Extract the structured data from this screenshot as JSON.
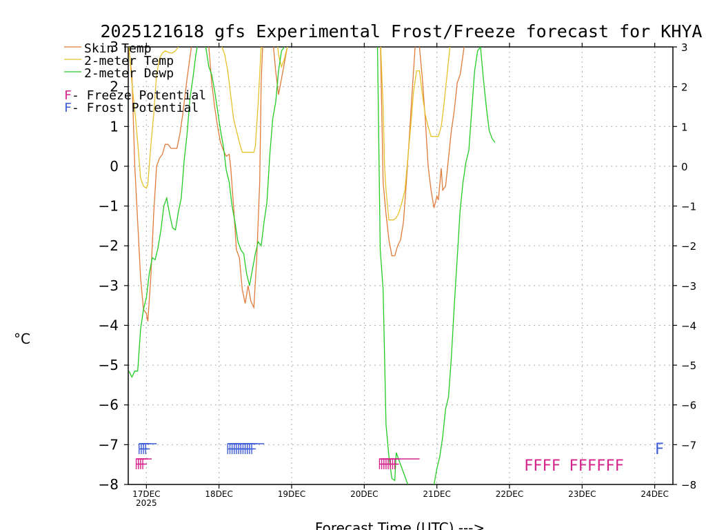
{
  "chart_data": {
    "type": "line",
    "title": "2025121618 gfs Experimental Frost/Freeze forecast for KHYA",
    "xlabel": "Forecast Time (UTC) --->",
    "ylabel": "°C",
    "ylim": [
      -8,
      3
    ],
    "xlim": [
      -0.25,
      7.25
    ],
    "x_unit": "days after 17DEC 00Z",
    "x_ticks": [
      {
        "value": 0,
        "label": "17DEC",
        "sub": "2025"
      },
      {
        "value": 1,
        "label": "18DEC"
      },
      {
        "value": 2,
        "label": "19DEC"
      },
      {
        "value": 3,
        "label": "20DEC"
      },
      {
        "value": 4,
        "label": "21DEC"
      },
      {
        "value": 5,
        "label": "22DEC"
      },
      {
        "value": 6,
        "label": "23DEC"
      },
      {
        "value": 7,
        "label": "24DEC"
      }
    ],
    "y_ticks": [
      3,
      2,
      1,
      0,
      -1,
      -2,
      -3,
      -4,
      -5,
      -6,
      -7,
      -8
    ],
    "grid": true,
    "colors": {
      "skin": "#e07b39",
      "t2m": "#e6c229",
      "dewp": "#22cc22",
      "freeze": "#d6228b",
      "frost": "#3b5bd6"
    },
    "legend": [
      {
        "label": "Skin Temp",
        "series": "skin"
      },
      {
        "label": "2-meter Temp",
        "series": "t2m"
      },
      {
        "label": "2-meter Dewp",
        "series": "dewp"
      }
    ],
    "potential_legend": [
      {
        "marker": "F",
        "label": " - Freeze Potential",
        "color": "#d6228b"
      },
      {
        "marker": "F",
        "label": " - Frost Potential",
        "color": "#3b5bd6"
      }
    ],
    "series": [
      {
        "name": "Skin Temp",
        "key": "skin",
        "points": [
          [
            -0.24,
            2.9
          ],
          [
            -0.2,
            2.3
          ],
          [
            -0.16,
            0.0
          ],
          [
            -0.12,
            -1.4
          ],
          [
            -0.08,
            -2.8
          ],
          [
            -0.04,
            -3.6
          ],
          [
            0.0,
            -3.7
          ],
          [
            0.02,
            -3.9
          ],
          [
            0.06,
            -2.8
          ],
          [
            0.1,
            -1.2
          ],
          [
            0.14,
            0.0
          ],
          [
            0.18,
            0.2
          ],
          [
            0.22,
            0.3
          ],
          [
            0.26,
            0.55
          ],
          [
            0.3,
            0.55
          ],
          [
            0.34,
            0.45
          ],
          [
            0.42,
            0.45
          ],
          [
            0.46,
            0.8
          ],
          [
            0.5,
            1.3
          ],
          [
            0.56,
            2.2
          ],
          [
            0.62,
            3.0
          ],
          [
            0.7,
            3.3
          ],
          [
            0.82,
            3.3
          ],
          [
            0.86,
            3.0
          ],
          [
            0.9,
            2.1
          ],
          [
            0.94,
            1.5
          ],
          [
            0.98,
            1.0
          ],
          [
            1.02,
            0.6
          ],
          [
            1.06,
            0.4
          ],
          [
            1.1,
            0.25
          ],
          [
            1.14,
            0.3
          ],
          [
            1.16,
            0.0
          ],
          [
            1.2,
            -1.0
          ],
          [
            1.24,
            -2.1
          ],
          [
            1.28,
            -2.3
          ],
          [
            1.32,
            -3.1
          ],
          [
            1.36,
            -3.45
          ],
          [
            1.4,
            -3.0
          ],
          [
            1.44,
            -3.4
          ],
          [
            1.48,
            -3.55
          ],
          [
            1.52,
            -2.3
          ],
          [
            1.56,
            -0.4
          ],
          [
            1.58,
            2.1
          ],
          [
            1.6,
            3.0
          ],
          [
            1.62,
            3.2
          ],
          [
            1.74,
            3.2
          ],
          [
            1.78,
            2.4
          ],
          [
            1.82,
            1.8
          ],
          [
            1.86,
            2.2
          ],
          [
            1.9,
            2.6
          ],
          [
            1.94,
            3.0
          ],
          [
            1.96,
            3.2
          ],
          [
            3.22,
            3.3
          ],
          [
            3.24,
            1.5
          ],
          [
            3.26,
            -0.4
          ],
          [
            3.3,
            -1.2
          ],
          [
            3.34,
            -1.85
          ],
          [
            3.38,
            -2.25
          ],
          [
            3.42,
            -2.25
          ],
          [
            3.46,
            -2.0
          ],
          [
            3.5,
            -1.85
          ],
          [
            3.54,
            -1.4
          ],
          [
            3.58,
            -0.4
          ],
          [
            3.62,
            0.7
          ],
          [
            3.66,
            1.9
          ],
          [
            3.7,
            3.0
          ],
          [
            3.72,
            3.1
          ],
          [
            3.76,
            3.0
          ],
          [
            3.8,
            2.2
          ],
          [
            3.84,
            1.2
          ],
          [
            3.86,
            0.6
          ],
          [
            3.88,
            0.0
          ],
          [
            3.92,
            -0.6
          ],
          [
            3.96,
            -1.05
          ],
          [
            4.0,
            -0.75
          ],
          [
            4.02,
            -0.85
          ],
          [
            4.06,
            -0.05
          ],
          [
            4.08,
            -0.6
          ],
          [
            4.12,
            -0.5
          ],
          [
            4.16,
            0.2
          ],
          [
            4.2,
            0.9
          ],
          [
            4.24,
            1.4
          ],
          [
            4.28,
            2.1
          ],
          [
            4.32,
            2.3
          ],
          [
            4.36,
            2.8
          ],
          [
            4.38,
            3.1
          ],
          [
            4.42,
            3.2
          ],
          [
            4.46,
            3.1
          ],
          [
            4.48,
            3.0
          ]
        ]
      },
      {
        "name": "2-meter Temp",
        "key": "t2m",
        "points": [
          [
            -0.24,
            3.0
          ],
          [
            -0.2,
            2.1
          ],
          [
            -0.16,
            1.4
          ],
          [
            -0.12,
            0.6
          ],
          [
            -0.08,
            -0.3
          ],
          [
            -0.04,
            -0.5
          ],
          [
            0.0,
            -0.55
          ],
          [
            0.02,
            -0.45
          ],
          [
            0.06,
            0.5
          ],
          [
            0.1,
            1.3
          ],
          [
            0.14,
            2.3
          ],
          [
            0.18,
            2.7
          ],
          [
            0.22,
            2.85
          ],
          [
            0.26,
            2.9
          ],
          [
            0.32,
            2.85
          ],
          [
            0.36,
            2.85
          ],
          [
            0.4,
            2.9
          ],
          [
            0.44,
            3.0
          ],
          [
            0.52,
            3.2
          ],
          [
            0.7,
            3.3
          ],
          [
            0.94,
            3.3
          ],
          [
            1.0,
            3.2
          ],
          [
            1.04,
            3.0
          ],
          [
            1.08,
            2.8
          ],
          [
            1.12,
            2.4
          ],
          [
            1.16,
            1.8
          ],
          [
            1.2,
            1.2
          ],
          [
            1.24,
            0.9
          ],
          [
            1.28,
            0.6
          ],
          [
            1.32,
            0.35
          ],
          [
            1.4,
            0.35
          ],
          [
            1.48,
            0.35
          ],
          [
            1.5,
            0.5
          ],
          [
            1.54,
            1.6
          ],
          [
            1.58,
            3.0
          ],
          [
            1.6,
            3.2
          ],
          [
            1.8,
            3.2
          ],
          [
            1.82,
            2.8
          ],
          [
            1.86,
            2.5
          ],
          [
            1.9,
            2.7
          ],
          [
            1.94,
            3.0
          ],
          [
            1.96,
            3.2
          ],
          [
            3.22,
            3.3
          ],
          [
            3.26,
            1.5
          ],
          [
            3.28,
            0.0
          ],
          [
            3.3,
            -0.6
          ],
          [
            3.34,
            -1.35
          ],
          [
            3.4,
            -1.35
          ],
          [
            3.44,
            -1.3
          ],
          [
            3.48,
            -1.15
          ],
          [
            3.52,
            -0.9
          ],
          [
            3.56,
            -0.6
          ],
          [
            3.6,
            0.2
          ],
          [
            3.64,
            1.0
          ],
          [
            3.68,
            1.9
          ],
          [
            3.72,
            2.4
          ],
          [
            3.76,
            2.4
          ],
          [
            3.8,
            1.8
          ],
          [
            3.84,
            1.3
          ],
          [
            3.88,
            1.0
          ],
          [
            3.92,
            0.75
          ],
          [
            3.98,
            0.75
          ],
          [
            4.02,
            0.75
          ],
          [
            4.06,
            1.0
          ],
          [
            4.1,
            1.6
          ],
          [
            4.14,
            2.3
          ],
          [
            4.18,
            3.0
          ],
          [
            4.2,
            3.2
          ],
          [
            4.36,
            3.2
          ],
          [
            4.38,
            3.0
          ]
        ]
      },
      {
        "name": "2-meter Dewp",
        "key": "dewp",
        "points": [
          [
            -0.24,
            -5.15
          ],
          [
            -0.2,
            -5.3
          ],
          [
            -0.16,
            -5.15
          ],
          [
            -0.12,
            -5.15
          ],
          [
            -0.08,
            -4.1
          ],
          [
            -0.04,
            -3.6
          ],
          [
            0.0,
            -3.3
          ],
          [
            0.04,
            -2.7
          ],
          [
            0.08,
            -2.3
          ],
          [
            0.12,
            -2.35
          ],
          [
            0.16,
            -2.05
          ],
          [
            0.2,
            -1.6
          ],
          [
            0.24,
            -1.0
          ],
          [
            0.28,
            -0.8
          ],
          [
            0.32,
            -1.2
          ],
          [
            0.36,
            -1.55
          ],
          [
            0.4,
            -1.6
          ],
          [
            0.44,
            -1.15
          ],
          [
            0.48,
            -0.8
          ],
          [
            0.52,
            0.15
          ],
          [
            0.56,
            0.8
          ],
          [
            0.6,
            1.7
          ],
          [
            0.64,
            2.2
          ],
          [
            0.68,
            2.8
          ],
          [
            0.72,
            3.2
          ],
          [
            0.76,
            3.2
          ],
          [
            0.8,
            3.2
          ],
          [
            0.86,
            2.5
          ],
          [
            0.9,
            2.3
          ],
          [
            0.94,
            1.9
          ],
          [
            0.98,
            1.4
          ],
          [
            1.02,
            0.9
          ],
          [
            1.06,
            0.5
          ],
          [
            1.1,
            -0.1
          ],
          [
            1.14,
            -0.4
          ],
          [
            1.18,
            -1.0
          ],
          [
            1.22,
            -1.4
          ],
          [
            1.26,
            -1.9
          ],
          [
            1.3,
            -2.1
          ],
          [
            1.34,
            -2.2
          ],
          [
            1.38,
            -2.7
          ],
          [
            1.42,
            -3.0
          ],
          [
            1.46,
            -2.6
          ],
          [
            1.5,
            -2.2
          ],
          [
            1.54,
            -1.9
          ],
          [
            1.58,
            -2.0
          ],
          [
            1.62,
            -1.4
          ],
          [
            1.66,
            -0.9
          ],
          [
            1.7,
            0.3
          ],
          [
            1.74,
            1.2
          ],
          [
            1.78,
            1.6
          ],
          [
            1.82,
            2.4
          ],
          [
            1.86,
            2.9
          ],
          [
            1.9,
            3.0
          ],
          [
            1.94,
            3.2
          ],
          [
            3.18,
            3.3
          ],
          [
            3.22,
            -2.1
          ],
          [
            3.26,
            -3.1
          ],
          [
            3.3,
            -6.5
          ],
          [
            3.34,
            -7.3
          ],
          [
            3.38,
            -7.85
          ],
          [
            3.42,
            -7.9
          ],
          [
            3.44,
            -7.2
          ],
          [
            3.48,
            -7.4
          ],
          [
            3.52,
            -7.6
          ],
          [
            3.56,
            -7.8
          ],
          [
            3.6,
            -8.0
          ]
        ],
        "points2": [
          [
            3.96,
            -8.0
          ],
          [
            4.0,
            -7.6
          ],
          [
            4.04,
            -7.3
          ],
          [
            4.08,
            -6.8
          ],
          [
            4.12,
            -6.1
          ],
          [
            4.16,
            -5.8
          ],
          [
            4.2,
            -4.8
          ],
          [
            4.24,
            -3.5
          ],
          [
            4.28,
            -2.3
          ],
          [
            4.32,
            -1.1
          ],
          [
            4.36,
            -0.4
          ],
          [
            4.4,
            0.1
          ],
          [
            4.44,
            0.4
          ],
          [
            4.48,
            1.4
          ],
          [
            4.52,
            2.4
          ],
          [
            4.56,
            2.9
          ],
          [
            4.6,
            3.0
          ],
          [
            4.64,
            2.2
          ],
          [
            4.68,
            1.5
          ],
          [
            4.72,
            0.9
          ],
          [
            4.76,
            0.7
          ],
          [
            4.8,
            0.6
          ]
        ]
      }
    ],
    "frost_marks": [
      {
        "x": [
          -0.1,
          -0.07,
          -0.04,
          -0.01
        ],
        "tail": 0.08
      },
      {
        "x": [
          1.12,
          1.15,
          1.18,
          1.21,
          1.24,
          1.27,
          1.3,
          1.33,
          1.36,
          1.39,
          1.42,
          1.45
        ],
        "tail": 0.1
      },
      {
        "x": [
          7.02
        ],
        "tail": 0
      }
    ],
    "freeze_marks": [
      {
        "x": [
          -0.14,
          -0.11,
          -0.08,
          -0.05
        ],
        "tail": 0.05
      },
      {
        "x": [
          3.21,
          3.24,
          3.27,
          3.3,
          3.33,
          3.36,
          3.39,
          3.42
        ],
        "tail": 0.28
      },
      {
        "text": "FFFF",
        "x": 5.2
      },
      {
        "text": "FFFFFF",
        "x": 5.82
      }
    ]
  }
}
